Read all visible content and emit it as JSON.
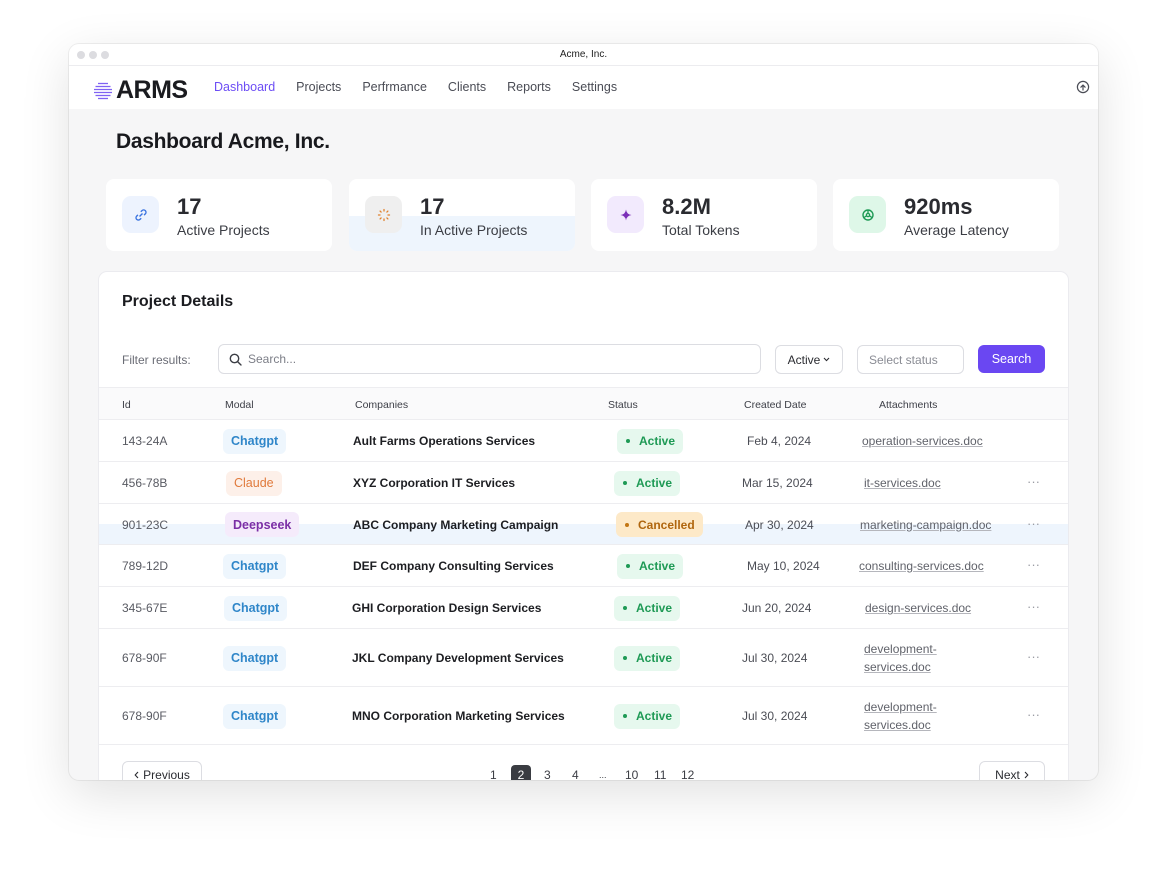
{
  "window": {
    "title": "Acme, Inc."
  },
  "brand": {
    "name": "ARMS",
    "accent": "#6a47f2"
  },
  "nav": {
    "items": [
      "Dashboard",
      "Projects",
      "Perfrmance",
      "Clients",
      "Reports",
      "Settings"
    ],
    "active": "Dashboard"
  },
  "page": {
    "title": "Dashboard Acme, Inc."
  },
  "stats": [
    {
      "value": "17",
      "label": "Active Projects",
      "icon": "link-icon",
      "icon_bg": "#edf3fe",
      "icon_color": "#3b74e0"
    },
    {
      "value": "17",
      "label": "In Active Projects",
      "icon": "loader-icon",
      "icon_bg": "#efefef",
      "icon_color": "#e0802c"
    },
    {
      "value": "8.2M",
      "label": "Total Tokens",
      "icon": "sparkle-icon",
      "icon_bg": "#f2eafd",
      "icon_color": "#7b2fb8"
    },
    {
      "value": "920ms",
      "label": "Average Latency",
      "icon": "gauge-icon",
      "icon_bg": "#def7e8",
      "icon_color": "#1e9a55"
    }
  ],
  "panel": {
    "title": "Project Details",
    "filter_label": "Filter results:",
    "search_placeholder": "Search...",
    "active_filter": "Active",
    "status_placeholder": "Select status",
    "search_button": "Search"
  },
  "table": {
    "columns": [
      "Id",
      "Modal",
      "Companies",
      "Status",
      "Created Date",
      "Attachments"
    ],
    "rows": [
      {
        "id": "143-24A",
        "model": "Chatgpt",
        "company": "Ault Farms Operations Services",
        "status": "Active",
        "date": "Feb 4, 2024",
        "attachment": [
          "operation-services.doc"
        ],
        "more": ""
      },
      {
        "id": "456-78B",
        "model": "Claude",
        "company": "XYZ Corporation IT Services",
        "status": "Active",
        "date": "Mar 15, 2024",
        "attachment": [
          "it-services.doc"
        ],
        "more": "···"
      },
      {
        "id": "901-23C",
        "model": "Deepseek",
        "company": "ABC Company Marketing Campaign",
        "status": "Cancelled",
        "date": "Apr 30, 2024",
        "attachment": [
          "marketing-campaign.doc"
        ],
        "more": "···"
      },
      {
        "id": "789-12D",
        "model": "Chatgpt",
        "company": "DEF Company Consulting Services",
        "status": "Active",
        "date": "May 10, 2024",
        "attachment": [
          "consulting-services.doc"
        ],
        "more": "···"
      },
      {
        "id": "345-67E",
        "model": "Chatgpt",
        "company": "GHI Corporation Design Services",
        "status": "Active",
        "date": "Jun 20, 2024",
        "attachment": [
          "design-services.doc"
        ],
        "more": "···"
      },
      {
        "id": "678-90F",
        "model": "Chatgpt",
        "company": "JKL Company Development Services",
        "status": "Active",
        "date": "Jul 30, 2024",
        "attachment": [
          "development-",
          "services.doc"
        ],
        "more": "···"
      },
      {
        "id": "678-90F",
        "model": "Chatgpt",
        "company": "MNO Corporation Marketing Services",
        "status": "Active",
        "date": "Jul 30, 2024",
        "attachment": [
          "development-",
          "services.doc"
        ],
        "more": "···"
      }
    ]
  },
  "pagination": {
    "previous": "Previous",
    "next": "Next",
    "pages": [
      "1",
      "2",
      "3",
      "4",
      "...",
      "10",
      "11",
      "12"
    ],
    "current": "2"
  }
}
